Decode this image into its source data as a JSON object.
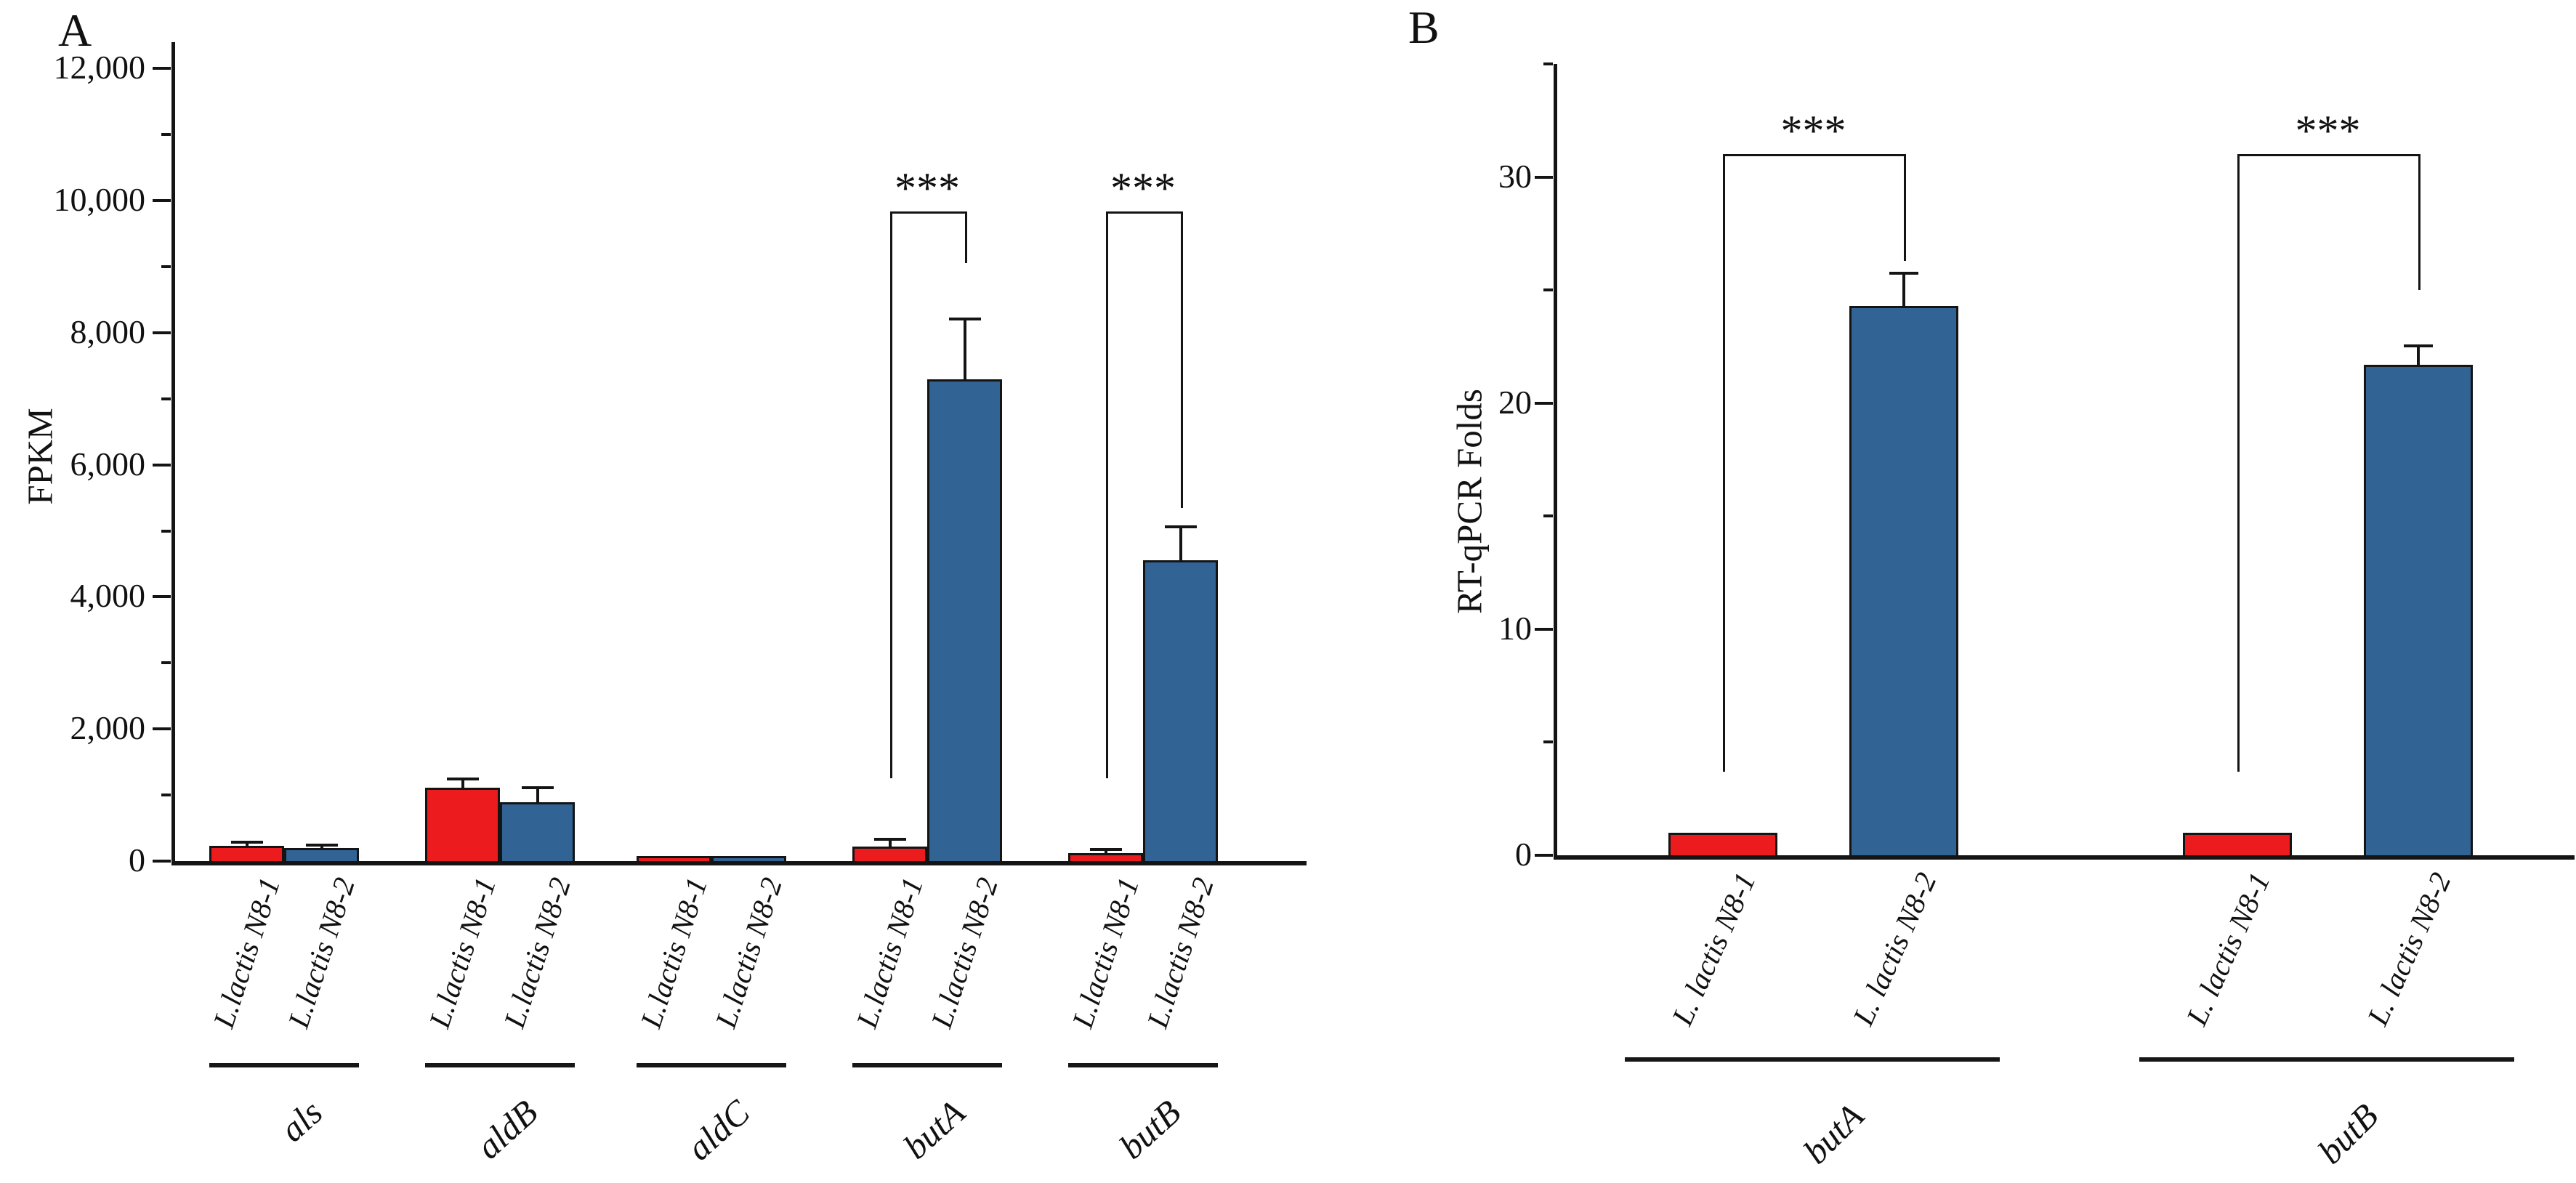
{
  "chart_data": [
    {
      "type": "bar",
      "panel_label": "A",
      "ylabel": "FPKM",
      "ylim": [
        0,
        12400
      ],
      "ytick_major_step": 2000,
      "ytick_minor_step": 1000,
      "ytick_labels": [
        "0",
        "2,000",
        "4,000",
        "6,000",
        "8,000",
        "10,000",
        "12,000"
      ],
      "grid": false,
      "legend": "none",
      "colors": {
        "red": "#ec1c1e",
        "blue": "#316394"
      },
      "series": [
        "L.lactis N8-1",
        "L.lactis N8-2"
      ],
      "groups": [
        {
          "gene": "als",
          "bars": [
            {
              "strain": "L.lactis N8-1",
              "color": "red",
              "value": 230,
              "error": 50
            },
            {
              "strain": "L.lactis N8-2",
              "color": "blue",
              "value": 200,
              "error": 35
            }
          ]
        },
        {
          "gene": "aldB",
          "bars": [
            {
              "strain": "L.lactis N8-1",
              "color": "red",
              "value": 1110,
              "error": 120
            },
            {
              "strain": "L.lactis N8-2",
              "color": "blue",
              "value": 890,
              "error": 210
            }
          ]
        },
        {
          "gene": "aldC",
          "bars": [
            {
              "strain": "L.lactis N8-1",
              "color": "red",
              "value": 80,
              "error": 15
            },
            {
              "strain": "L.lactis N8-2",
              "color": "blue",
              "value": 75,
              "error": 15
            }
          ]
        },
        {
          "gene": "butA",
          "bars": [
            {
              "strain": "L.lactis N8-1",
              "color": "red",
              "value": 220,
              "error": 100
            },
            {
              "strain": "L.lactis N8-2",
              "color": "blue",
              "value": 7300,
              "error": 900
            }
          ],
          "significance": {
            "label": "***",
            "bracket_value": 9840,
            "left_leg_value": 1250,
            "right_leg_value": 9050
          }
        },
        {
          "gene": "butB",
          "bars": [
            {
              "strain": "L.lactis N8-1",
              "color": "red",
              "value": 120,
              "error": 40
            },
            {
              "strain": "L.lactis N8-2",
              "color": "blue",
              "value": 4550,
              "error": 500
            }
          ],
          "significance": {
            "label": "***",
            "bracket_value": 9840,
            "left_leg_value": 1250,
            "right_leg_value": 5350
          }
        }
      ]
    },
    {
      "type": "bar",
      "panel_label": "B",
      "ylabel": "RT-qPCR Folds",
      "ylim": [
        0,
        35
      ],
      "ytick_major_step": 10,
      "ytick_minor_step": 5,
      "ytick_labels": [
        "0",
        "10",
        "20",
        "30"
      ],
      "grid": false,
      "legend": "none",
      "colors": {
        "red": "#ec1c1e",
        "blue": "#316394"
      },
      "series": [
        "L. lactis N8-1",
        "L. lactis N8-2"
      ],
      "groups": [
        {
          "gene": "butA",
          "bars": [
            {
              "strain": "L. lactis N8-1",
              "color": "red",
              "value": 1,
              "error": 0
            },
            {
              "strain": "L. lactis N8-2",
              "color": "blue",
              "value": 24.3,
              "error": 1.4
            }
          ],
          "significance": {
            "label": "***",
            "bracket_value": 31,
            "left_leg_value": 3.7,
            "right_leg_value": 26.3
          }
        },
        {
          "gene": "butB",
          "bars": [
            {
              "strain": "L. lactis N8-1",
              "color": "red",
              "value": 1,
              "error": 0
            },
            {
              "strain": "L. lactis N8-2",
              "color": "blue",
              "value": 21.7,
              "error": 0.8
            }
          ],
          "significance": {
            "label": "***",
            "bracket_value": 31,
            "left_leg_value": 3.7,
            "right_leg_value": 25.0
          }
        }
      ]
    }
  ]
}
